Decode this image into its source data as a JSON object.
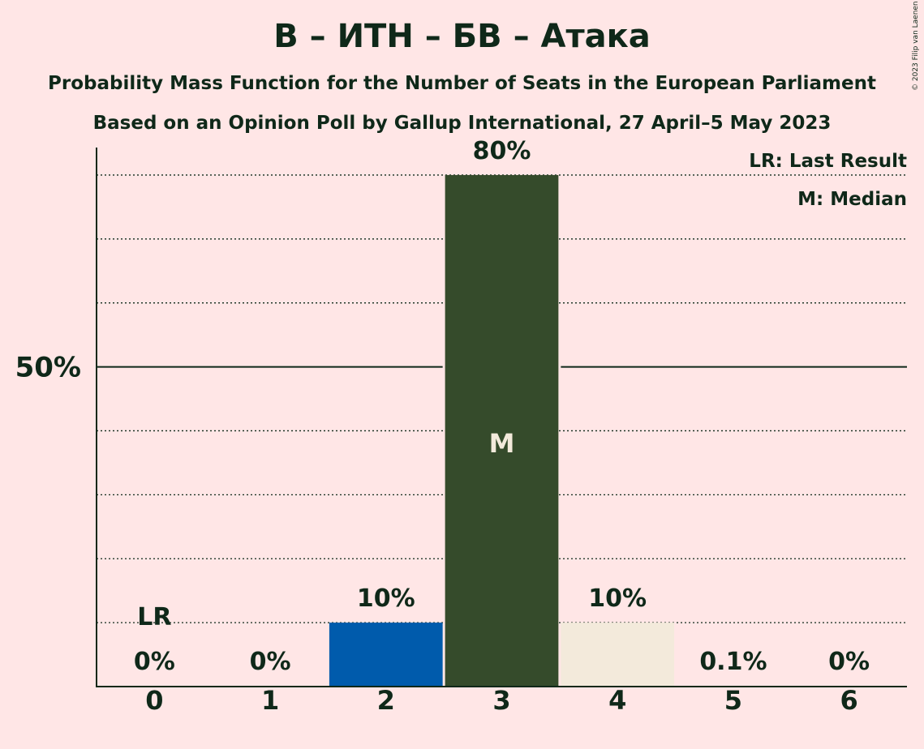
{
  "title": "В – ИТН – БВ – Атака",
  "subtitle_1": "Probability Mass Function for the Number of Seats in the European Parliament",
  "subtitle_2": "Based on an Opinion Poll by Gallup International, 27 April–5 May 2023",
  "copyright": "© 2023 Filip van Laenen",
  "legend": {
    "last_result": "LR: Last Result",
    "median": "M: Median"
  },
  "colors": {
    "background": "#FFE6E6",
    "text": "#0F2819",
    "bar_blue": "#005BAC",
    "bar_green": "#354B2B",
    "bar_light": "#F3EADB"
  },
  "chart_data": {
    "type": "bar",
    "categories": [
      "0",
      "1",
      "2",
      "3",
      "4",
      "5",
      "6"
    ],
    "values": [
      0,
      0,
      10,
      80,
      10,
      0.1,
      0
    ],
    "labels": [
      "0%",
      "0%",
      "10%",
      "80%",
      "10%",
      "0.1%",
      "0%"
    ],
    "bar_colors": [
      "#005BAC",
      "#005BAC",
      "#005BAC",
      "#354B2B",
      "#F3EADB",
      "#F3EADB",
      "#F3EADB"
    ],
    "ylim": [
      0,
      84.3
    ],
    "y_tick_label": "50%",
    "y_tick_value": 50,
    "gridlines": [
      10,
      20,
      30,
      40,
      60,
      70,
      80
    ],
    "last_result": {
      "category": "0",
      "label": "LR"
    },
    "median": {
      "category": "3",
      "label": "M"
    }
  }
}
